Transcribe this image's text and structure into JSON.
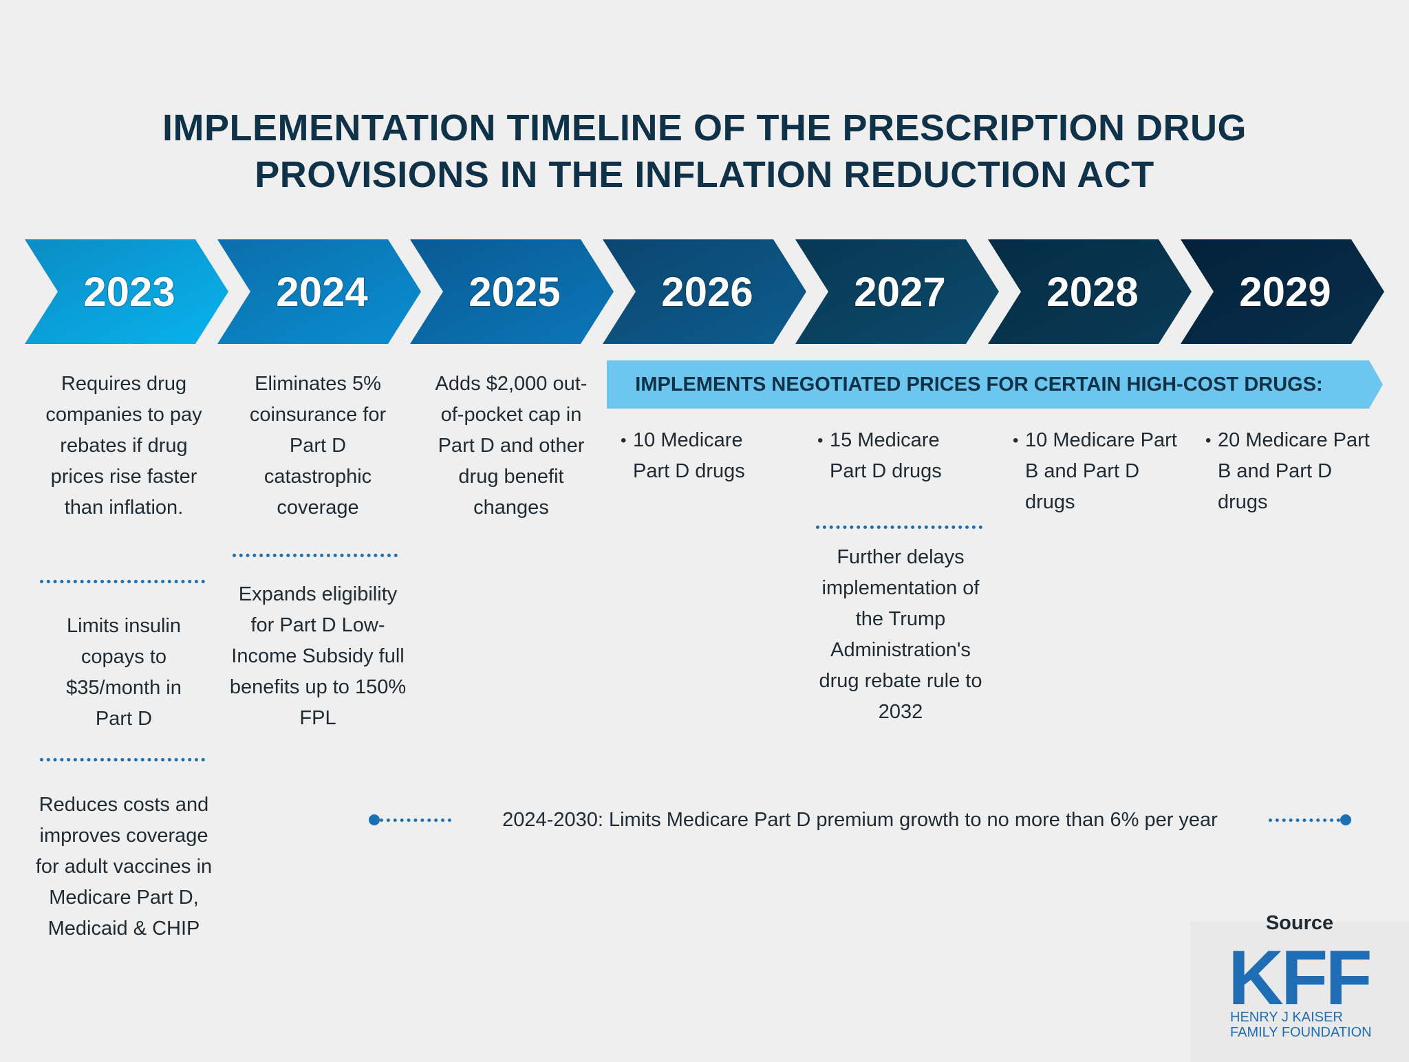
{
  "title": {
    "line1": "IMPLEMENTATION TIMELINE OF THE PRESCRIPTION DRUG",
    "line2": "PROVISIONS IN THE INFLATION REDUCTION ACT"
  },
  "years": [
    "2023",
    "2024",
    "2025",
    "2026",
    "2027",
    "2028",
    "2029"
  ],
  "chevron_colors": [
    [
      "#0b8cc4",
      "#08b3ef"
    ],
    [
      "#0b6eaa",
      "#0a8ed2"
    ],
    [
      "#0a5a93",
      "#0b77b8"
    ],
    [
      "#0b466f",
      "#0d5c8e"
    ],
    [
      "#083753",
      "#0b4b6d"
    ],
    [
      "#062c44",
      "#093a56"
    ],
    [
      "#04213a",
      "#072f4a"
    ]
  ],
  "col2023": {
    "item1": "Requires drug companies to pay rebates if drug prices rise faster than inflation.",
    "item2": "Limits insulin copays to $35/month in Part D",
    "item3": "Reduces costs and improves coverage for adult vaccines in Medicare Part D, Medicaid & CHIP"
  },
  "col2024": {
    "item1": "Eliminates 5% coinsurance for Part D catastrophic coverage",
    "item2": "Expands eligibility for Part D Low-Income Subsidy full benefits up to 150% FPL"
  },
  "col2025": {
    "item1": "Adds $2,000 out-of-pocket cap in Part D and other drug benefit changes"
  },
  "banner": {
    "text": "IMPLEMENTS NEGOTIATED PRICES FOR CERTAIN HIGH-COST DRUGS:",
    "color": "#6dc6ee"
  },
  "negotiated": [
    "10 Medicare Part D drugs",
    "15 Medicare Part D drugs",
    "10 Medicare Part B and Part D drugs",
    "20 Medicare Part B and Part D drugs"
  ],
  "col2027": {
    "item2": "Further delays implementation of the Trump Administration's drug rebate rule to 2032"
  },
  "range": {
    "text": "2024-2030: Limits Medicare Part D premium growth to no more than 6% per year"
  },
  "source": {
    "label": "Source",
    "logo": "KFF",
    "line1": "HENRY J KAISER",
    "line2": "FAMILY FOUNDATION"
  },
  "colors": {
    "separator": "#1b6fb3",
    "title": "#0f3248"
  }
}
